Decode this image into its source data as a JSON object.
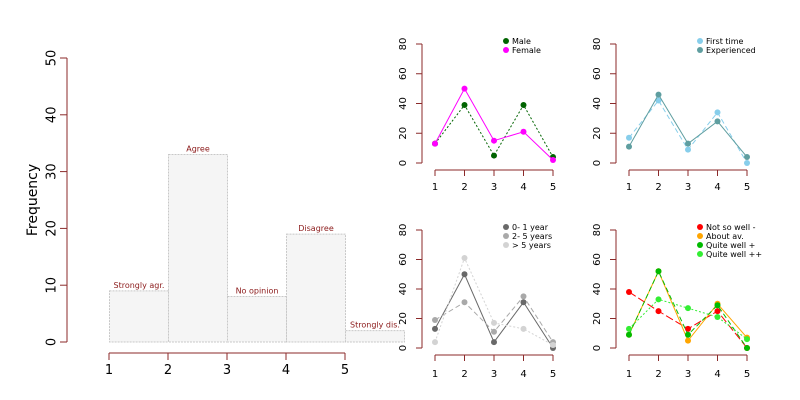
{
  "chart_data": [
    {
      "type": "bar",
      "ylabel": "Frequency",
      "x": [
        1,
        2,
        3,
        4,
        5
      ],
      "values": [
        9,
        33,
        8,
        19,
        2
      ],
      "bar_labels": [
        "Strongly agr.",
        "Agree",
        "No opinion",
        "Disagree",
        "Strongly dis."
      ],
      "ylim": [
        0,
        50
      ],
      "yticks": [
        0,
        10,
        20,
        30,
        40,
        50
      ],
      "xticks": [
        1,
        2,
        3,
        4,
        5
      ],
      "colors": {
        "bar_fill": "#f5f5f5",
        "bar_border": "#c8c8c8",
        "axis": "#8b2a2a",
        "label": "#8b1a1a"
      }
    },
    {
      "type": "line",
      "x": [
        1,
        2,
        3,
        4,
        5
      ],
      "ylim": [
        0,
        80
      ],
      "yticks": [
        0,
        20,
        40,
        60,
        80
      ],
      "legend_position": "top-right",
      "series": [
        {
          "name": "Male",
          "values": [
            13,
            39,
            5,
            39,
            4
          ],
          "color": "#006400",
          "dash": "dotted"
        },
        {
          "name": "Female",
          "values": [
            13,
            50,
            15,
            21,
            2
          ],
          "color": "#ff00ff",
          "dash": "solid"
        }
      ]
    },
    {
      "type": "line",
      "x": [
        1,
        2,
        3,
        4,
        5
      ],
      "ylim": [
        0,
        80
      ],
      "yticks": [
        0,
        20,
        40,
        60,
        80
      ],
      "legend_position": "top-right",
      "series": [
        {
          "name": "First time",
          "values": [
            17,
            42,
            9,
            34,
            0
          ],
          "color": "#87ceeb",
          "dash": "dashed"
        },
        {
          "name": "Experienced",
          "values": [
            11,
            46,
            13,
            28,
            4
          ],
          "color": "#5f9ea0",
          "dash": "solid"
        }
      ]
    },
    {
      "type": "line",
      "x": [
        1,
        2,
        3,
        4,
        5
      ],
      "ylim": [
        0,
        80
      ],
      "yticks": [
        0,
        20,
        40,
        60,
        80
      ],
      "legend_position": "top-right",
      "series": [
        {
          "name": "0- 1 year",
          "values": [
            13,
            50,
            4,
            31,
            0
          ],
          "color": "#696969",
          "dash": "solid"
        },
        {
          "name": "2- 5 years",
          "values": [
            19,
            31,
            11,
            35,
            4
          ],
          "color": "#a9a9a9",
          "dash": "dashed"
        },
        {
          "name": "> 5 years",
          "values": [
            4,
            61,
            17,
            13,
            2
          ],
          "color": "#d3d3d3",
          "dash": "dotted"
        }
      ]
    },
    {
      "type": "line",
      "x": [
        1,
        2,
        3,
        4,
        5
      ],
      "ylim": [
        0,
        80
      ],
      "yticks": [
        0,
        20,
        40,
        60,
        80
      ],
      "legend_position": "top-right",
      "series": [
        {
          "name": "Not so well -",
          "values": [
            38,
            25,
            13,
            25,
            0
          ],
          "color": "#ff0000",
          "dash": "longdash"
        },
        {
          "name": "About av.",
          "values": [
            9,
            52,
            5,
            30,
            7
          ],
          "color": "#ffa500",
          "dash": "solid"
        },
        {
          "name": "Quite well +",
          "values": [
            9,
            52,
            9,
            29,
            0
          ],
          "color": "#00bb00",
          "dash": "dashed"
        },
        {
          "name": "Quite well ++",
          "values": [
            13,
            33,
            27,
            21,
            6
          ],
          "color": "#33ee33",
          "dash": "dotted"
        }
      ]
    }
  ]
}
